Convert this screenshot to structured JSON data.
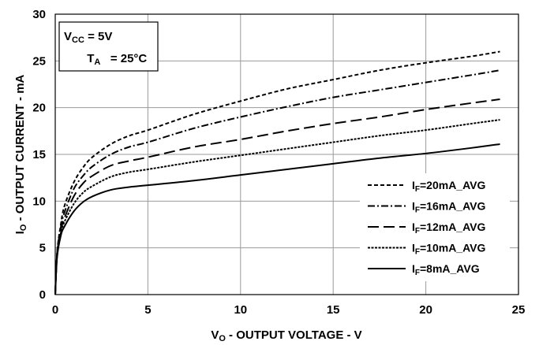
{
  "chart_data": {
    "type": "line",
    "xlabel_main": "V",
    "xlabel_sub": "O",
    "xlabel_rest": " - OUTPUT VOLTAGE - V",
    "ylabel_main": "I",
    "ylabel_sub": "O",
    "ylabel_rest": " - OUTPUT CURRENT - mA",
    "xlim": [
      0,
      25
    ],
    "ylim": [
      0,
      30
    ],
    "x_ticks": [
      "0",
      "5",
      "10",
      "15",
      "20",
      "25"
    ],
    "y_ticks": [
      "0",
      "5",
      "10",
      "15",
      "20",
      "25",
      "30"
    ],
    "grid": true,
    "legend_position": "bottom-right",
    "conditions": {
      "vcc_main": "V",
      "vcc_sub": "CC",
      "vcc_value": " = 5V",
      "ta_main": "T",
      "ta_sub": "A",
      "ta_value": "   = 25°C"
    },
    "series": [
      {
        "name_main": "I",
        "name_sub": "F",
        "name_rest": "=20mA_AVG",
        "dash": "5,3",
        "x": [
          0,
          0.1,
          0.3,
          0.5,
          1,
          1.5,
          2,
          3,
          4,
          5,
          7.5,
          10,
          12.5,
          15,
          17.5,
          20,
          22.5,
          24
        ],
        "y": [
          0,
          4.5,
          7.5,
          9.5,
          12.0,
          13.6,
          14.7,
          16.1,
          17.0,
          17.6,
          19.3,
          20.7,
          22.0,
          23.0,
          24.0,
          24.8,
          25.5,
          26.0
        ]
      },
      {
        "name_main": "I",
        "name_sub": "F",
        "name_rest": "=16mA_AVG",
        "dash": "9,3,2,3",
        "x": [
          0,
          0.1,
          0.3,
          0.5,
          1,
          1.5,
          2,
          3,
          4,
          5,
          7.5,
          10,
          12.5,
          15,
          17.5,
          20,
          22.5,
          24
        ],
        "y": [
          0,
          4.4,
          7.2,
          8.8,
          11.3,
          12.7,
          13.7,
          15.0,
          15.8,
          16.3,
          17.8,
          19.0,
          20.1,
          21.1,
          21.9,
          22.7,
          23.5,
          24.0
        ]
      },
      {
        "name_main": "I",
        "name_sub": "F",
        "name_rest": "=12mA_AVG",
        "dash": "14,6",
        "x": [
          0,
          0.1,
          0.3,
          0.5,
          1,
          1.5,
          2,
          3,
          4,
          5,
          7.5,
          10,
          12.5,
          15,
          17.5,
          20,
          22.5,
          24
        ],
        "y": [
          0,
          4.3,
          6.9,
          8.2,
          10.5,
          11.9,
          12.7,
          13.8,
          14.3,
          14.7,
          15.8,
          16.6,
          17.5,
          18.3,
          19.0,
          19.8,
          20.5,
          20.9
        ]
      },
      {
        "name_main": "I",
        "name_sub": "F",
        "name_rest": "=10mA_AVG",
        "dash": "3,1.5",
        "x": [
          0,
          0.1,
          0.3,
          0.5,
          1,
          1.5,
          2,
          3,
          4,
          5,
          7.5,
          10,
          12.5,
          15,
          17.5,
          20,
          22.5,
          24
        ],
        "y": [
          0,
          4.2,
          6.6,
          7.8,
          9.7,
          10.9,
          11.6,
          12.6,
          13.1,
          13.4,
          14.2,
          14.9,
          15.6,
          16.3,
          17.0,
          17.6,
          18.3,
          18.7
        ]
      },
      {
        "name_main": "I",
        "name_sub": "F",
        "name_rest": "=8mA_AVG",
        "dash": "",
        "x": [
          0,
          0.1,
          0.3,
          0.5,
          1,
          1.5,
          2,
          3,
          4,
          5,
          7.5,
          10,
          12.5,
          15,
          17.5,
          20,
          22.5,
          24
        ],
        "y": [
          0,
          4.0,
          6.3,
          7.3,
          8.9,
          9.9,
          10.5,
          11.2,
          11.5,
          11.7,
          12.2,
          12.8,
          13.4,
          14.0,
          14.6,
          15.1,
          15.7,
          16.1
        ]
      }
    ]
  }
}
